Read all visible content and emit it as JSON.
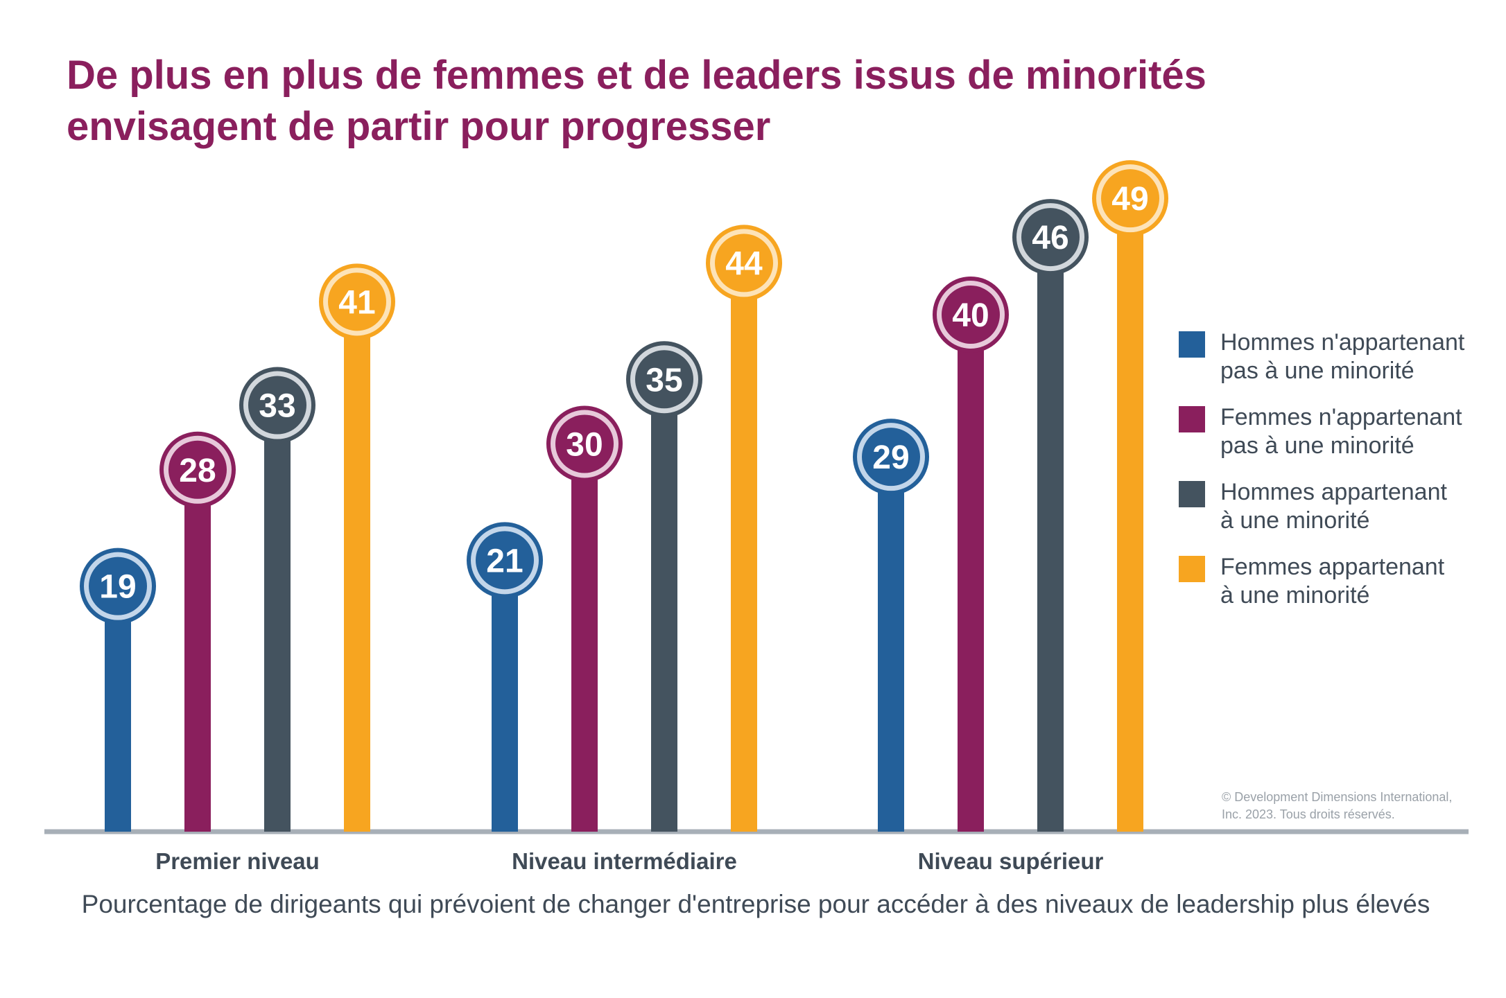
{
  "title": {
    "line1": "De plus en plus de femmes et de leaders issus de minorités",
    "line2": "envisagent de partir pour progresser"
  },
  "subtitle": "Pourcentage de dirigeants qui prévoient de changer d'entreprise pour accéder à des niveaux de leadership plus élevés",
  "copyright": {
    "line1": "© Development Dimensions International,",
    "line2": "Inc. 2023. Tous droits réservés."
  },
  "chart_data": {
    "type": "bar",
    "title": "De plus en plus de femmes et de leaders issus de minorités envisagent de partir pour progresser",
    "xlabel": "",
    "ylabel": "Pourcentage de dirigeants qui prévoient de changer d'entreprise pour accéder à des niveaux de leadership plus élevés",
    "categories": [
      "Premier niveau",
      "Niveau intermédiaire",
      "Niveau supérieur"
    ],
    "series": [
      {
        "name": "Hommes n'appartenant pas à une minorité",
        "label_lines": [
          "Hommes n'appartenant",
          "pas à une minorité"
        ],
        "color": "#23609a",
        "values": [
          19,
          21,
          29
        ]
      },
      {
        "name": "Femmes n'appartenant pas à une minorité",
        "label_lines": [
          "Femmes n'appartenant",
          "pas à une minorité"
        ],
        "color": "#8a1f5d",
        "values": [
          28,
          30,
          40
        ]
      },
      {
        "name": "Hommes appartenant à une minorité",
        "label_lines": [
          "Hommes appartenant",
          "à une minorité"
        ],
        "color": "#44535f",
        "values": [
          33,
          35,
          46
        ]
      },
      {
        "name": "Femmes appartenant à une minorité",
        "label_lines": [
          "Femmes appartenant",
          "à une minorité"
        ],
        "color": "#f7a520",
        "values": [
          41,
          44,
          49
        ]
      }
    ],
    "ylim": [
      0,
      50
    ],
    "grid": false,
    "legend": "right"
  }
}
